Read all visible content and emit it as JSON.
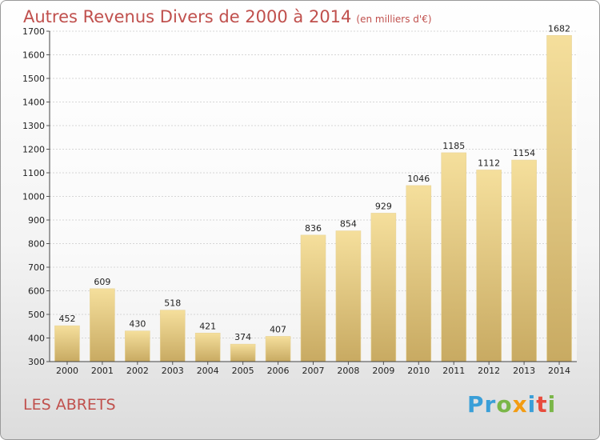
{
  "title": "Autres Revenus Divers de 2000 à 2014",
  "subtitle": "(en milliers d'€)",
  "place": "LES ABRETS",
  "logo": {
    "letters": [
      "P",
      "r",
      "o",
      "x",
      "i",
      "t",
      "i"
    ],
    "colors": [
      "#3a9fd8",
      "#3a9fd8",
      "#7ab648",
      "#f39c12",
      "#3a9fd8",
      "#e84c3d",
      "#7ab648"
    ]
  },
  "colors": {
    "title": "#c0504d",
    "bar_light": "#f5df9c",
    "bar_dark": "#c8aa62"
  },
  "chart_data": {
    "type": "bar",
    "categories": [
      "2000",
      "2001",
      "2002",
      "2003",
      "2004",
      "2005",
      "2006",
      "2007",
      "2008",
      "2009",
      "2010",
      "2011",
      "2012",
      "2013",
      "2014"
    ],
    "values": [
      452,
      609,
      430,
      518,
      421,
      374,
      407,
      836,
      854,
      929,
      1046,
      1185,
      1112,
      1154,
      1682
    ],
    "ylim": [
      300,
      1700
    ],
    "yticks": [
      300,
      400,
      500,
      600,
      700,
      800,
      900,
      1000,
      1100,
      1200,
      1300,
      1400,
      1500,
      1600,
      1700
    ],
    "grid": true,
    "xlabel": "",
    "ylabel": ""
  }
}
